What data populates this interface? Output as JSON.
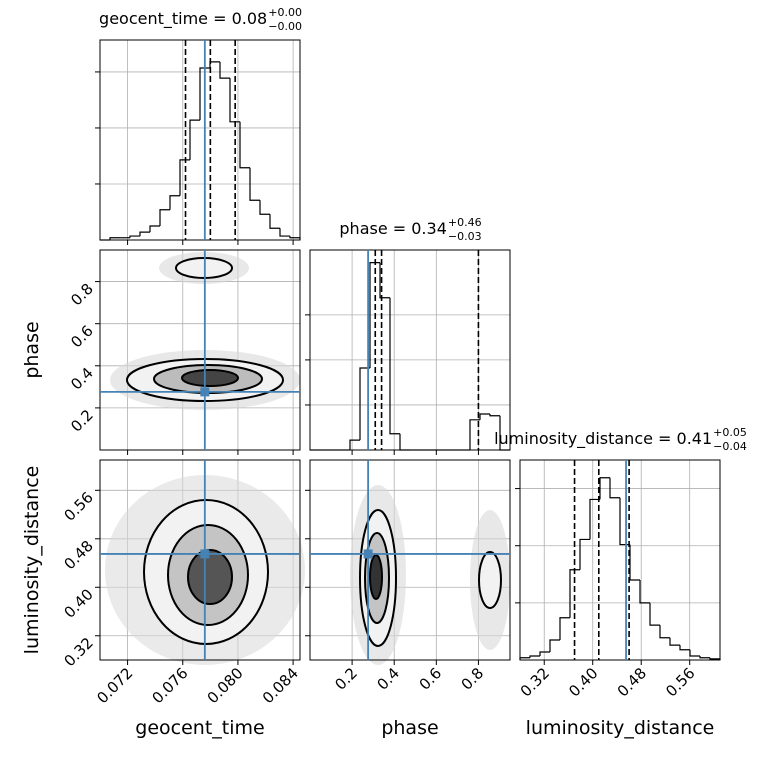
{
  "chart_data": [
    {
      "type": "histogram",
      "title": "geocent_time = 0.08",
      "title_sup": "+0.00",
      "title_sub": "−0.00",
      "bins": [
        0.07,
        0.070725,
        0.07145,
        0.072175,
        0.0729,
        0.073625,
        0.07435,
        0.075075,
        0.0758,
        0.076525,
        0.07725,
        0.077975,
        0.0787,
        0.079425,
        0.08015,
        0.080875,
        0.0816,
        0.082325,
        0.08305,
        0.083775,
        0.0845
      ],
      "values": [
        0,
        0.04,
        0.04,
        0.07,
        0.14,
        0.25,
        0.54,
        0.79,
        1.43,
        2.14,
        3.07,
        3.18,
        2.89,
        2.11,
        1.29,
        0.71,
        0.46,
        0.21,
        0.07,
        0.04
      ],
      "xlim": [
        0.07,
        0.0845
      ],
      "xticks": [
        0.072,
        0.076,
        {
          "value": 0.08,
          "label": "0.080"
        },
        0.084
      ],
      "ylim": [
        0,
        3.57
      ],
      "yticks": [
        1,
        2,
        3
      ],
      "quantiles": [
        0.0762,
        0.078,
        0.0798
      ],
      "truth": 0.0776,
      "color": "#000000",
      "truth_color": "#4682b4",
      "grid": true
    },
    {
      "type": "histogram",
      "title": "phase = 0.34",
      "title_sup": "+0.46",
      "title_sub": "−0.03",
      "bins": [
        0,
        0.0475,
        0.095,
        0.1425,
        0.19,
        0.2375,
        0.285,
        0.3325,
        0.38,
        0.4275,
        0.475,
        0.5225,
        0.57,
        0.6175,
        0.665,
        0.7125,
        0.76,
        0.8075,
        0.855,
        0.9025,
        0.95
      ],
      "values": [
        0,
        0,
        0,
        0,
        0.22,
        1.82,
        4.16,
        3.38,
        0.36,
        0,
        0,
        0,
        0,
        0,
        0,
        0,
        0.67,
        0.8,
        0.76,
        0
      ],
      "xlim": [
        0,
        0.95
      ],
      "xticks": [
        0.2,
        0.4,
        0.6,
        0.8
      ],
      "ylim": [
        0,
        4.44
      ],
      "yticks": [
        1,
        2,
        3
      ],
      "quantiles": [
        0.31,
        0.34,
        0.8
      ],
      "truth": 0.276,
      "color": "#000000",
      "truth_color": "#4682b4",
      "grid": true
    },
    {
      "type": "histogram",
      "title": "luminosity_distance = 0.41",
      "title_sup": "+0.05",
      "title_sub": "−0.04",
      "xlabel": "luminosity_distance",
      "bins": [
        0.28,
        0.2965,
        0.313,
        0.3295,
        0.346,
        0.3625,
        0.379,
        0.3955,
        0.412,
        0.4285,
        0.445,
        0.4615,
        0.478,
        0.4945,
        0.511,
        0.5275,
        0.544,
        0.5605,
        0.577,
        0.5935,
        0.61
      ],
      "values": [
        0.04,
        0.07,
        0.14,
        0.35,
        0.74,
        1.58,
        2.11,
        2.81,
        3.19,
        2.84,
        2.02,
        1.4,
        1.0,
        0.61,
        0.39,
        0.26,
        0.18,
        0.07,
        0.04,
        0.02
      ],
      "xlim": [
        0.28,
        0.61
      ],
      "xticks": [
        0.32,
        {
          "value": 0.4,
          "label": "0.40"
        },
        0.48,
        0.56
      ],
      "ylim": [
        0,
        3.5
      ],
      "yticks": [
        1,
        2,
        3
      ],
      "quantiles": [
        0.37,
        0.41,
        0.46
      ],
      "truth": 0.455,
      "color": "#000000",
      "truth_color": "#4682b4",
      "grid": true
    },
    {
      "type": "hist2d",
      "ylabel": "phase",
      "xlim": [
        0.07,
        0.0845
      ],
      "xticks": [
        0.072,
        0.076,
        {
          "value": 0.08,
          "label": "0.080"
        },
        0.084
      ],
      "ylim": [
        0,
        0.95
      ],
      "yticks": [
        0.2,
        0.4,
        0.6,
        0.8
      ],
      "truth_x": 0.0776,
      "truth_y": 0.276,
      "truth_color": "#4682b4",
      "grid": true
    },
    {
      "type": "hist2d",
      "xlabel": "geocent_time",
      "ylabel": "luminosity_distance",
      "xlim": [
        0.07,
        0.0845
      ],
      "xticks": [
        0.072,
        0.076,
        {
          "value": 0.08,
          "label": "0.080"
        },
        0.084
      ],
      "ylim": [
        0.28,
        0.61
      ],
      "yticks": [
        0.32,
        {
          "value": 0.4,
          "label": "0.40"
        },
        0.48,
        0.56
      ],
      "truth_x": 0.0776,
      "truth_y": 0.455,
      "truth_color": "#4682b4",
      "grid": true
    },
    {
      "type": "hist2d",
      "xlabel": "phase",
      "xlim": [
        0,
        0.95
      ],
      "xticks": [
        0.2,
        0.4,
        0.6,
        0.8
      ],
      "ylim": [
        0.28,
        0.61
      ],
      "yticks": [
        0.32,
        {
          "value": 0.4,
          "label": "0.40"
        },
        0.48,
        0.56
      ],
      "truth_x": 0.276,
      "truth_y": 0.455,
      "truth_color": "#4682b4",
      "grid": true
    }
  ]
}
